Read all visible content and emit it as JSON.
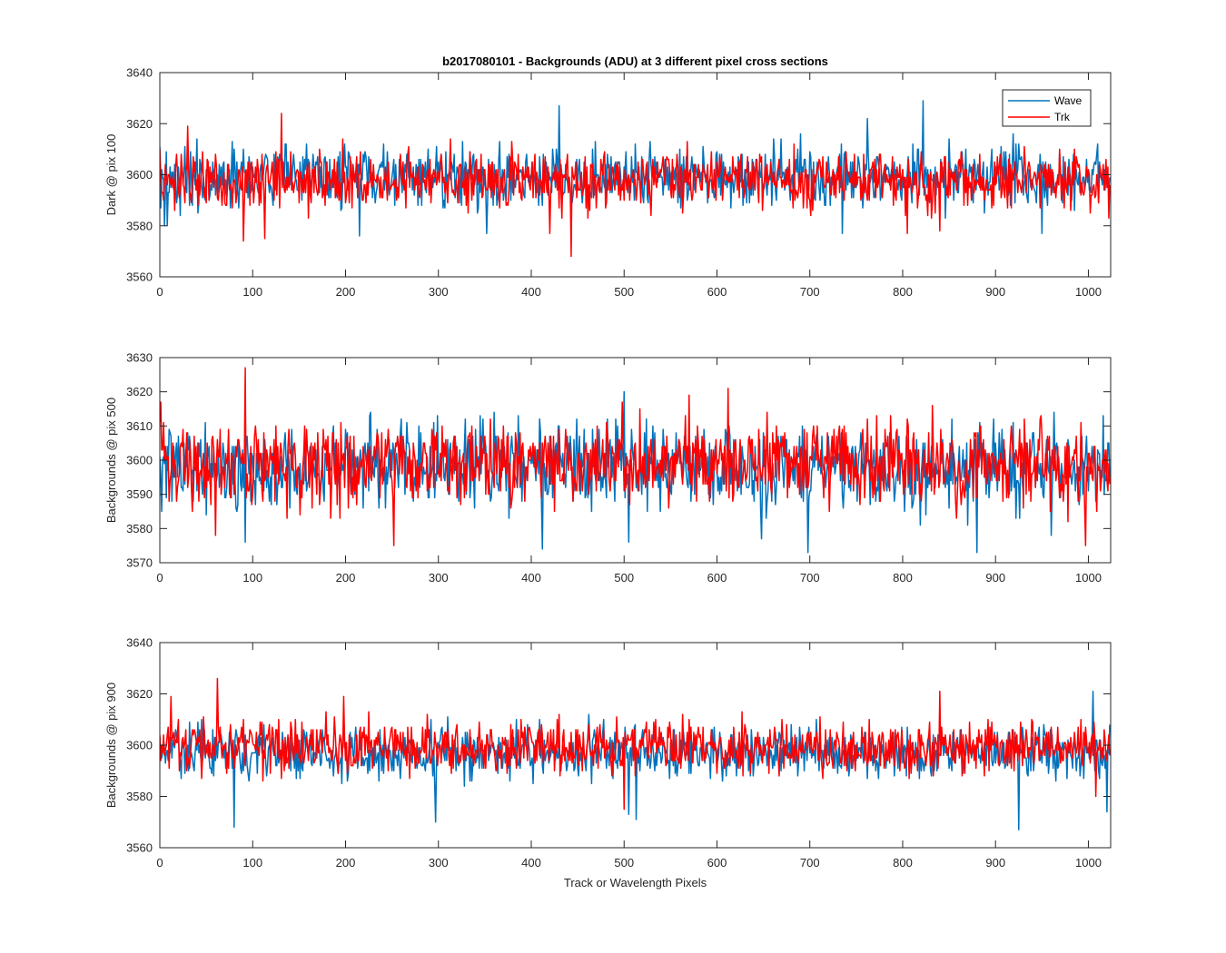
{
  "chart_data": [
    {
      "type": "line",
      "title": "b2017080101 - Backgrounds (ADU) at 3 different pixel cross sections",
      "xlabel": "",
      "ylabel": "Dark @ pix 100",
      "xlim": [
        0,
        1024
      ],
      "ylim": [
        3560,
        3640
      ],
      "x_ticks": [
        0,
        100,
        200,
        300,
        400,
        500,
        600,
        700,
        800,
        900,
        1000
      ],
      "y_ticks": [
        3560,
        3580,
        3600,
        3620,
        3640
      ],
      "grid": false,
      "legend": {
        "placement": "top-right",
        "entries": [
          "Wave",
          "Trk"
        ]
      },
      "series": [
        {
          "name": "Wave",
          "color": "#0072BD",
          "n_points": 1024,
          "mean": 3599,
          "sd": 6,
          "spikes": [
            [
              430,
              3627
            ],
            [
              822,
              3629
            ],
            [
              762,
              3622
            ],
            [
              1010,
              3612
            ],
            [
              5,
              3580
            ],
            [
              8,
              3580
            ],
            [
              215,
              3576
            ],
            [
              352,
              3577
            ],
            [
              735,
              3577
            ],
            [
              950,
              3577
            ]
          ]
        },
        {
          "name": "Trk",
          "color": "#FF0000",
          "n_points": 1024,
          "mean": 3598,
          "sd": 6,
          "spikes": [
            [
              131,
              3624
            ],
            [
              30,
              3619
            ],
            [
              90,
              3574
            ],
            [
              113,
              3575
            ],
            [
              443,
              3568
            ],
            [
              420,
              3577
            ],
            [
              805,
              3577
            ],
            [
              840,
              3578
            ],
            [
              1022,
              3583
            ]
          ]
        }
      ]
    },
    {
      "type": "line",
      "title": "",
      "xlabel": "",
      "ylabel": "Backgrounds @ pix 500",
      "xlim": [
        0,
        1024
      ],
      "ylim": [
        3570,
        3630
      ],
      "x_ticks": [
        0,
        100,
        200,
        300,
        400,
        500,
        600,
        700,
        800,
        900,
        1000
      ],
      "y_ticks": [
        3570,
        3580,
        3590,
        3600,
        3610,
        3620,
        3630
      ],
      "grid": false,
      "series": [
        {
          "name": "Wave",
          "color": "#0072BD",
          "n_points": 1024,
          "mean": 3598,
          "sd": 6,
          "spikes": [
            [
              500,
              3620
            ],
            [
              698,
              3573
            ],
            [
              880,
              3573
            ],
            [
              412,
              3574
            ],
            [
              92,
              3576
            ],
            [
              505,
              3576
            ],
            [
              648,
              3577
            ],
            [
              960,
              3578
            ]
          ]
        },
        {
          "name": "Trk",
          "color": "#FF0000",
          "n_points": 1024,
          "mean": 3599,
          "sd": 6,
          "spikes": [
            [
              92,
              3627
            ],
            [
              612,
              3621
            ],
            [
              1,
              3617
            ],
            [
              570,
              3619
            ],
            [
              252,
              3575
            ],
            [
              997,
              3575
            ],
            [
              60,
              3578
            ]
          ]
        }
      ]
    },
    {
      "type": "line",
      "title": "",
      "xlabel": "Track or Wavelength Pixels",
      "ylabel": "Backgrounds @ pix 900",
      "xlim": [
        0,
        1024
      ],
      "ylim": [
        3560,
        3640
      ],
      "x_ticks": [
        0,
        100,
        200,
        300,
        400,
        500,
        600,
        700,
        800,
        900,
        1000
      ],
      "y_ticks": [
        3560,
        3580,
        3600,
        3620,
        3640
      ],
      "grid": false,
      "series": [
        {
          "name": "Wave",
          "color": "#0072BD",
          "n_points": 1024,
          "mean": 3597,
          "sd": 5,
          "spikes": [
            [
              80,
              3568
            ],
            [
              925,
              3567
            ],
            [
              297,
              3570
            ],
            [
              1005,
              3621
            ],
            [
              513,
              3571
            ],
            [
              505,
              3573
            ],
            [
              1020,
              3574
            ]
          ]
        },
        {
          "name": "Trk",
          "color": "#FF0000",
          "n_points": 1024,
          "mean": 3599,
          "sd": 5,
          "spikes": [
            [
              62,
              3626
            ],
            [
              12,
              3619
            ],
            [
              198,
              3619
            ],
            [
              840,
              3621
            ],
            [
              500,
              3575
            ],
            [
              1008,
              3580
            ]
          ]
        }
      ]
    }
  ]
}
